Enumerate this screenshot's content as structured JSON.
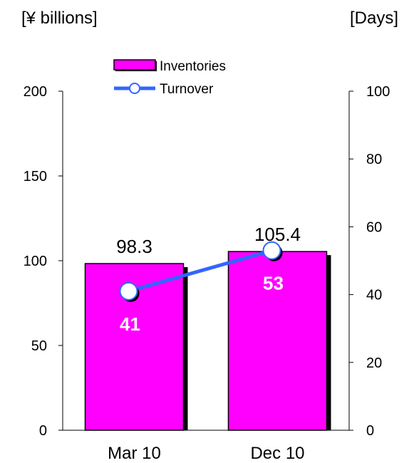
{
  "units": {
    "left": "[¥ billions]",
    "right": "[Days]"
  },
  "legend": {
    "bar": "Inventories",
    "line": "Turnover"
  },
  "colors": {
    "bar": "#ff00ff",
    "bar_shadow": "#000000",
    "line": "#3366ff",
    "marker_fill": "#ffffff"
  },
  "chart_data": {
    "type": "bar",
    "categories": [
      "Mar 10",
      "Dec 10"
    ],
    "series": [
      {
        "name": "Inventories",
        "type": "bar",
        "axis": "left",
        "values": [
          98.3,
          105.4
        ],
        "labels": [
          "98.3",
          "105.4"
        ]
      },
      {
        "name": "Turnover",
        "type": "line",
        "axis": "right",
        "values": [
          41,
          53
        ],
        "labels": [
          "41",
          "53"
        ]
      }
    ],
    "left_axis": {
      "min": 0,
      "max": 200,
      "ticks": [
        "0",
        "50",
        "100",
        "150",
        "200"
      ]
    },
    "right_axis": {
      "min": 0,
      "max": 100,
      "ticks": [
        "0",
        "20",
        "40",
        "60",
        "80",
        "100"
      ]
    },
    "legend_position": "top-center",
    "grid": false
  }
}
